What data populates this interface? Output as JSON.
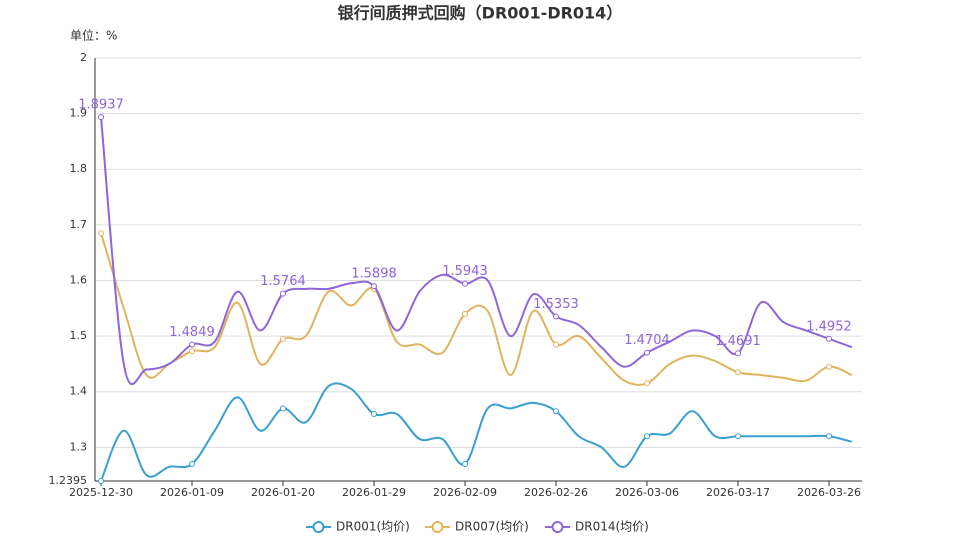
{
  "chart_data": {
    "type": "line",
    "title": "银行间质押式回购（DR001-DR014）",
    "y_unit_label": "单位：%",
    "categories": [
      "2025-12-30",
      null,
      null,
      null,
      "2026-01-09",
      null,
      null,
      null,
      "2026-01-20",
      null,
      null,
      null,
      "2026-01-29",
      null,
      null,
      null,
      "2026-02-09",
      null,
      null,
      null,
      "2026-02-26",
      null,
      null,
      null,
      "2026-03-06",
      null,
      null,
      null,
      "2026-03-17",
      null,
      null,
      null,
      "2026-03-26",
      null
    ],
    "ylim": [
      1.2395,
      2
    ],
    "yticks": [
      1.2395,
      1.3,
      1.4,
      1.5,
      1.6,
      1.7,
      1.8,
      1.9,
      2
    ],
    "grid": true,
    "legend": "bottom",
    "series": [
      {
        "name": "DR001(均价)",
        "color": "#3a9fcf",
        "values": [
          1.2395,
          1.33,
          1.25,
          1.265,
          1.27,
          1.33,
          1.39,
          1.33,
          1.37,
          1.345,
          1.41,
          1.405,
          1.36,
          1.36,
          1.315,
          1.315,
          1.27,
          1.37,
          1.37,
          1.38,
          1.365,
          1.32,
          1.3,
          1.265,
          1.32,
          1.325,
          1.365,
          1.32,
          1.32,
          1.32,
          1.32,
          1.32,
          1.32,
          1.31
        ]
      },
      {
        "name": "DR007(均价)",
        "color": "#e0b45e",
        "values": [
          1.685,
          1.55,
          1.43,
          1.45,
          1.473,
          1.48,
          1.56,
          1.45,
          1.495,
          1.5,
          1.58,
          1.555,
          1.585,
          1.49,
          1.485,
          1.47,
          1.54,
          1.545,
          1.43,
          1.545,
          1.485,
          1.5,
          1.46,
          1.42,
          1.415,
          1.45,
          1.465,
          1.455,
          1.435,
          1.43,
          1.425,
          1.42,
          1.445,
          1.43
        ]
      },
      {
        "name": "DR014(均价)",
        "color": "#8d66d9",
        "values": [
          1.8937,
          1.45,
          1.44,
          1.45,
          1.4849,
          1.49,
          1.58,
          1.51,
          1.5764,
          1.585,
          1.585,
          1.595,
          1.5898,
          1.51,
          1.58,
          1.61,
          1.5943,
          1.6,
          1.5,
          1.575,
          1.5353,
          1.52,
          1.48,
          1.445,
          1.4704,
          1.49,
          1.51,
          1.5,
          1.4691,
          1.56,
          1.525,
          1.51,
          1.4952,
          1.48
        ],
        "value_labels": [
          "1.8937",
          null,
          null,
          null,
          "1.4849",
          null,
          null,
          null,
          "1.5764",
          null,
          null,
          null,
          "1.5898",
          null,
          null,
          null,
          "1.5943",
          null,
          null,
          null,
          "1.5353",
          null,
          null,
          null,
          "1.4704",
          null,
          null,
          null,
          "1.4691",
          null,
          null,
          null,
          "1.4952",
          null
        ]
      }
    ]
  }
}
